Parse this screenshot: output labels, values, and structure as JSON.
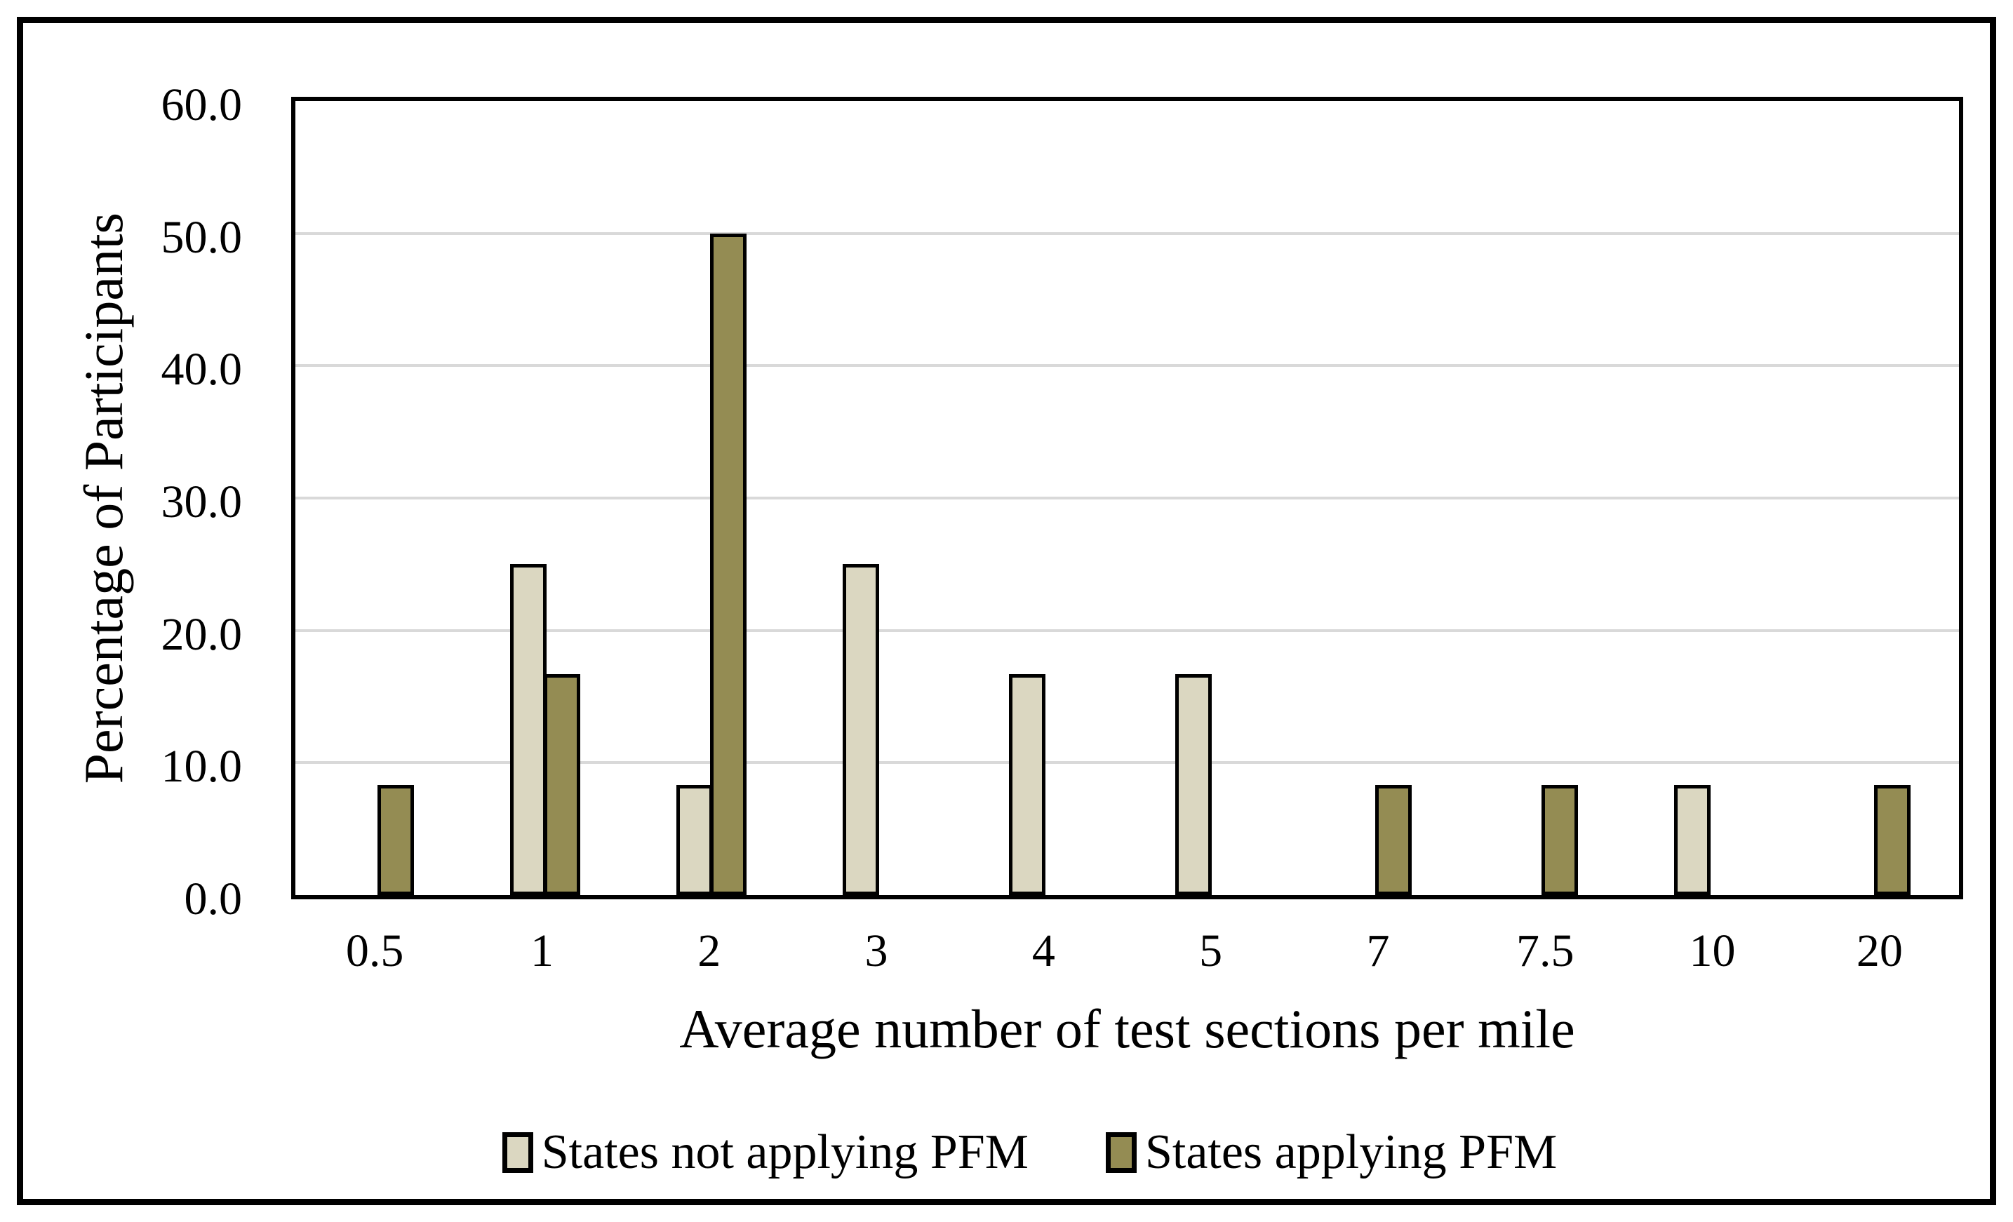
{
  "figure": {
    "background": "#FFFFFF",
    "outer_border_color": "#000000"
  },
  "chart_data": {
    "type": "bar",
    "title": "",
    "categories": [
      "0.5",
      "1",
      "2",
      "3",
      "4",
      "5",
      "7",
      "7.5",
      "10",
      "20"
    ],
    "series": [
      {
        "name": "States not applying PFM",
        "color": "#DBD7C1",
        "values": [
          0,
          25.0,
          8.3,
          25.0,
          16.7,
          16.7,
          0,
          0,
          8.3,
          0
        ]
      },
      {
        "name": "States applying PFM",
        "color": "#948C53",
        "values": [
          8.3,
          16.7,
          50.0,
          0,
          0,
          0,
          8.3,
          8.3,
          0,
          8.3
        ]
      }
    ],
    "xlabel": "Average number of test sections per mile",
    "ylabel": "Percentage of Participants",
    "ylim": [
      0,
      60
    ],
    "ytick_step": 10,
    "yticks": [
      "0.0",
      "10.0",
      "20.0",
      "30.0",
      "40.0",
      "50.0",
      "60.0"
    ],
    "grid": true,
    "gridline_color": "#D9D9D9",
    "bar_outline_color": "#000000",
    "legend_position": "bottom"
  }
}
